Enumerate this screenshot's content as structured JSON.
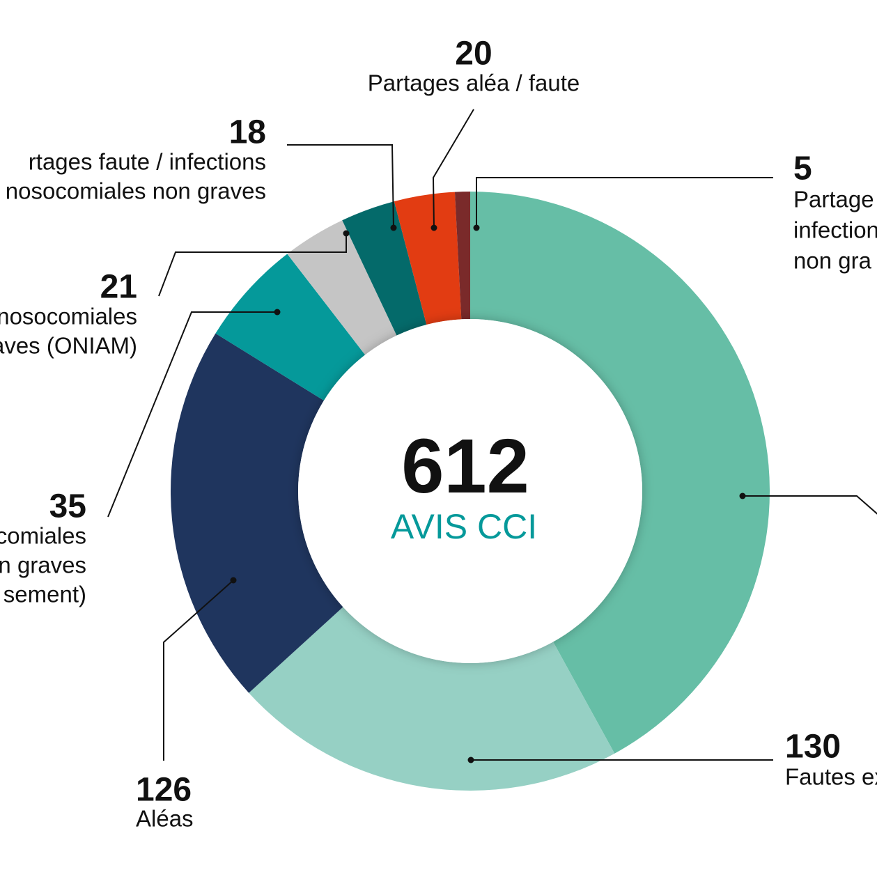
{
  "chart_data": {
    "type": "donut",
    "center_value": 612,
    "center_label": "AVIS CCI",
    "categories": [
      null,
      [
        "Fautes ex"
      ],
      [
        "Aléas"
      ],
      [
        "comiales",
        "n graves",
        "sement)"
      ],
      [
        "nosocomiales",
        "aves (ONIAM)"
      ],
      [
        "rtages faute / infections",
        "nosocomiales non graves"
      ],
      [
        "Partages aléa / faute"
      ],
      [
        "Partage",
        "infection",
        "non gra"
      ]
    ],
    "values": [
      257,
      130,
      126,
      35,
      21,
      18,
      20,
      5
    ],
    "value_labels": [
      null,
      "130",
      "126",
      "35",
      "21",
      "18",
      "20",
      "5"
    ],
    "colors": [
      "#66bea6",
      "#96d0c4",
      "#1f355e",
      "#05999a",
      "#c5c5c5",
      "#046a6a",
      "#e23c12",
      "#7a2a2a"
    ]
  }
}
